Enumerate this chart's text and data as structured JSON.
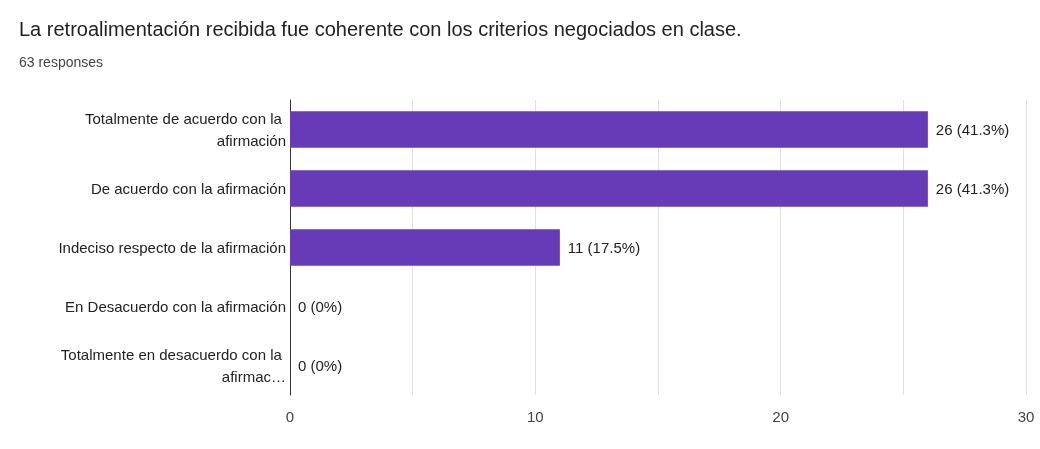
{
  "chart_data": {
    "type": "bar",
    "orientation": "horizontal",
    "title": "La retroalimentación recibida fue coherente con los criterios negociados en clase.",
    "subtitle": "63 responses",
    "categories": [
      "Totalmente de acuerdo con la afirmación",
      "De acuerdo con la afirmación",
      "Indeciso respecto de la afirmación",
      "En Desacuerdo con la afirmación",
      "Totalmente en desacuerdo con la afirmac…"
    ],
    "values": [
      26,
      26,
      11,
      0,
      0
    ],
    "value_labels": [
      "26 (41.3%)",
      "26 (41.3%)",
      "11 (17.5%)",
      "0 (0%)",
      "0 (0%)"
    ],
    "color": "#673ab7",
    "xlim": [
      0,
      30
    ],
    "xticks": [
      0,
      10,
      20,
      30
    ],
    "grid": "x"
  }
}
